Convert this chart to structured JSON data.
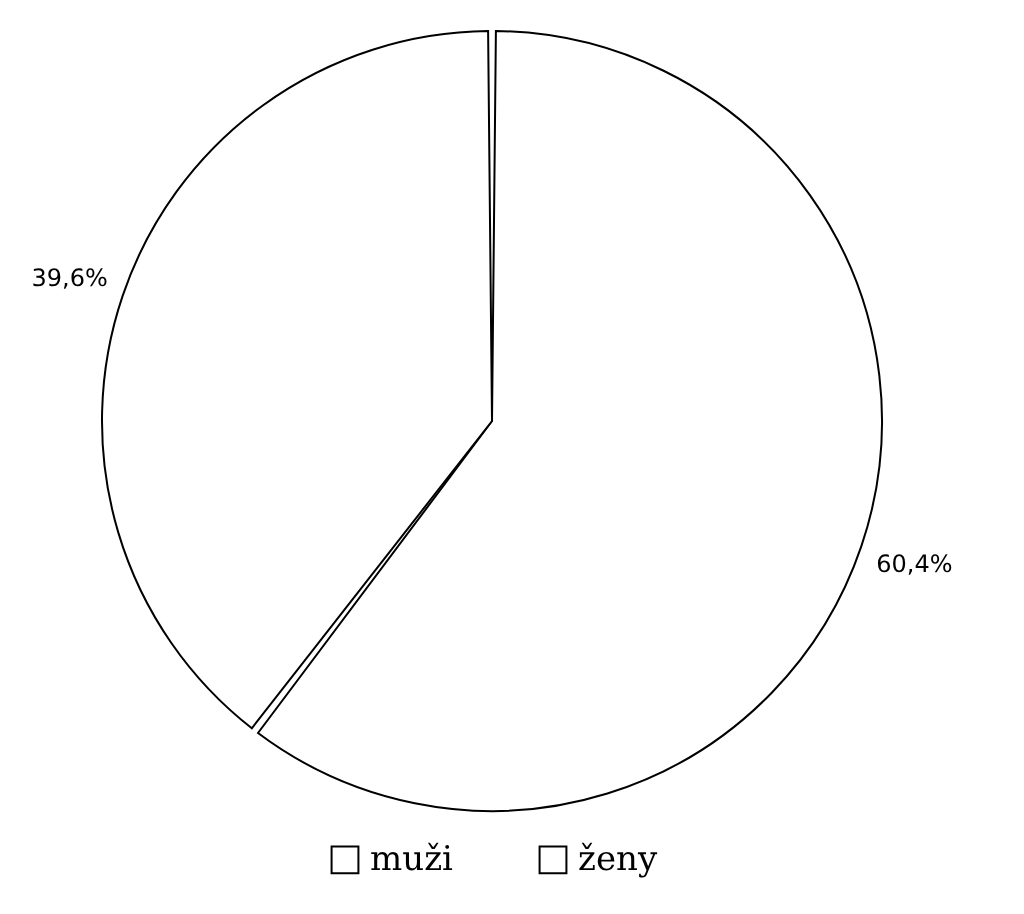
{
  "chart_data": {
    "type": "pie",
    "categories": [
      "muži",
      "ženy"
    ],
    "values": [
      60.4,
      39.6
    ],
    "colors": [
      "#ffffff",
      "#ffffff"
    ],
    "value_labels": [
      "60,4%",
      "39,6%"
    ],
    "legend": "bottom"
  }
}
